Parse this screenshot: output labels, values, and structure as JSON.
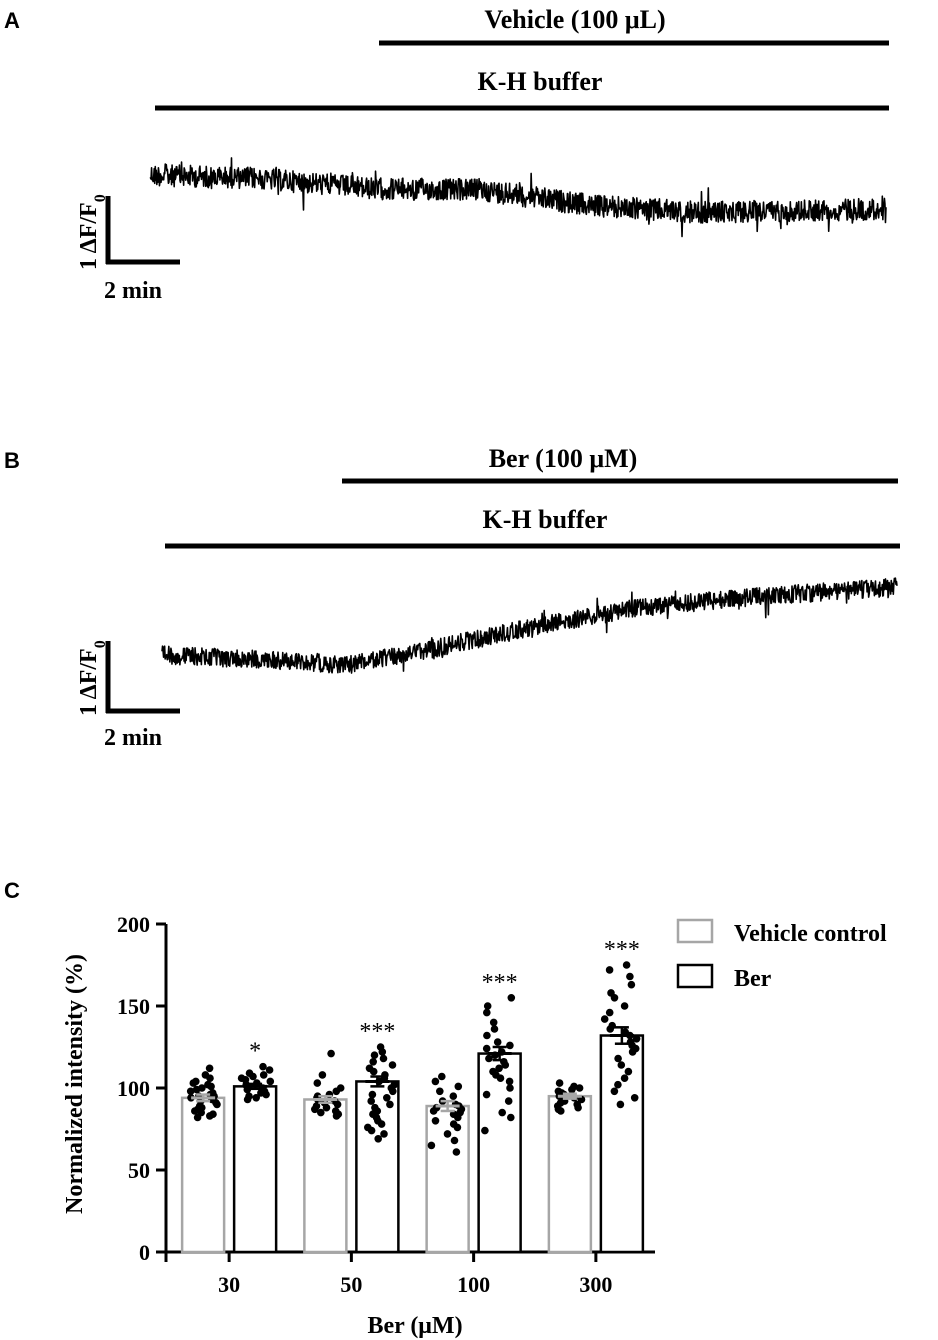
{
  "panels": {
    "A": {
      "letter": "A",
      "bar_top_label": "Vehicle (100 μL)",
      "bar_bottom_label": "K-H buffer",
      "scale_y_label": "1 ΔF/F",
      "scale_y_sub": "0",
      "scale_x_label": "2 min"
    },
    "B": {
      "letter": "B",
      "bar_top_label": "Ber (100 μM)",
      "bar_bottom_label": "K-H buffer",
      "scale_y_label": "1 ΔF/F",
      "scale_y_sub": "0",
      "scale_x_label": "2 min"
    },
    "C": {
      "letter": "C"
    }
  },
  "chart_data": [
    {
      "type": "line",
      "panel": "A",
      "description_units": "ΔF/F0 trace vs time (min)",
      "x_range_min": [
        0,
        20
      ],
      "trace_points": [
        [
          0,
          0.0
        ],
        [
          3,
          -0.05
        ],
        [
          6,
          -0.2
        ],
        [
          9,
          -0.22
        ],
        [
          12,
          -0.45
        ],
        [
          15,
          -0.55
        ],
        [
          18,
          -0.52
        ],
        [
          20,
          -0.5
        ]
      ],
      "stimulus_on_min": 6
    },
    {
      "type": "line",
      "panel": "B",
      "description_units": "ΔF/F0 trace vs time (min)",
      "x_range_min": [
        0,
        20
      ],
      "trace_points": [
        [
          0,
          0.0
        ],
        [
          2,
          -0.05
        ],
        [
          4,
          -0.1
        ],
        [
          5,
          -0.15
        ],
        [
          7,
          0.05
        ],
        [
          10,
          0.4
        ],
        [
          13,
          0.7
        ],
        [
          16,
          0.85
        ],
        [
          20,
          1.0
        ]
      ],
      "stimulus_on_min": 5
    },
    {
      "type": "bar",
      "panel": "C",
      "categories": [
        "30",
        "50",
        "100",
        "300"
      ],
      "xlabel": "Ber (μM)",
      "ylabel": "Normalized intensity (%)",
      "ylim": [
        0,
        200
      ],
      "yticks": [
        0,
        50,
        100,
        150,
        200
      ],
      "series": [
        {
          "name": "Vehicle control",
          "color": "#a6a6a6",
          "values": [
            94,
            93,
            89,
            95
          ],
          "sem": [
            2,
            2,
            3,
            1.5
          ],
          "points": [
            [
              112,
              108,
              106,
              104,
              103,
              102,
              101,
              100,
              99,
              98,
              97,
              96,
              95,
              95,
              94,
              93,
              92,
              91,
              90,
              89,
              88,
              87,
              86,
              85,
              84,
              83,
              82
            ],
            [
              121,
              108,
              103,
              100,
              98,
              96,
              95,
              94,
              93,
              92,
              91,
              90,
              89,
              88,
              87,
              86,
              85,
              84,
              83
            ],
            [
              107,
              104,
              101,
              98,
              95,
              92,
              90,
              89,
              88,
              87,
              86,
              85,
              84,
              82,
              80,
              78,
              76,
              72,
              68,
              65,
              61
            ],
            [
              103,
              101,
              100,
              99,
              98,
              97,
              96,
              95,
              94,
              93,
              92,
              91,
              90,
              89,
              88,
              87,
              86
            ]
          ]
        },
        {
          "name": "Ber",
          "color": "#000000",
          "values": [
            101,
            104,
            121,
            132
          ],
          "sem": [
            1.5,
            3,
            4,
            5
          ],
          "significance": [
            "*",
            "***",
            "***",
            "***"
          ],
          "points": [
            [
              113,
              111,
              109,
              108,
              107,
              106,
              105,
              104,
              103,
              102,
              101,
              100,
              99,
              98,
              97,
              96,
              95,
              94,
              93
            ],
            [
              125,
              122,
              120,
              118,
              116,
              114,
              112,
              110,
              108,
              106,
              104,
              102,
              100,
              98,
              96,
              94,
              92,
              90,
              88,
              86,
              84,
              82,
              80,
              78,
              76,
              74,
              72,
              69
            ],
            [
              155,
              150,
              146,
              140,
              136,
              132,
              128,
              126,
              124,
              122,
              120,
              118,
              116,
              114,
              112,
              110,
              108,
              106,
              104,
              100,
              96,
              92,
              85,
              82,
              74
            ],
            [
              175,
              172,
              168,
              163,
              158,
              155,
              150,
              146,
              142,
              138,
              136,
              134,
              132,
              130,
              128,
              126,
              124,
              122,
              118,
              114,
              110,
              106,
              102,
              98,
              94,
              90
            ]
          ]
        }
      ],
      "legend": {
        "placement": "top-right",
        "entries": [
          "Vehicle control",
          "Ber"
        ]
      }
    }
  ]
}
